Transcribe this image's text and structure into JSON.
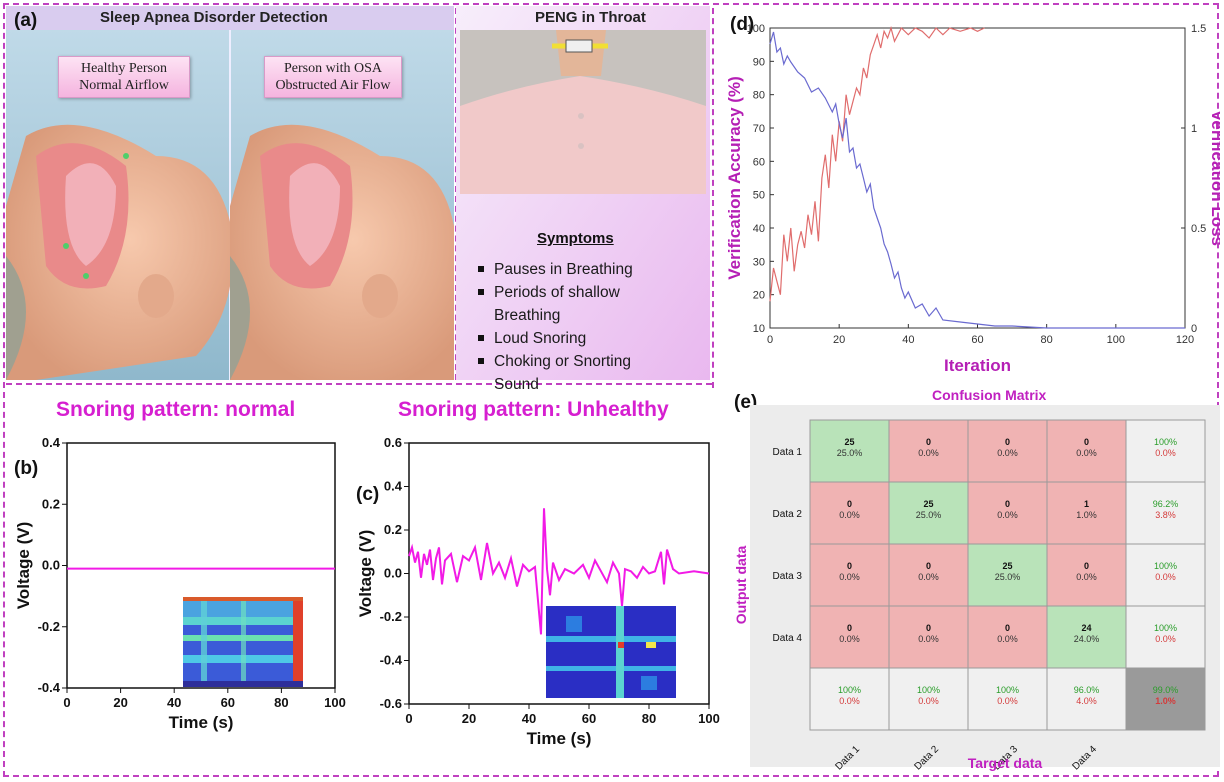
{
  "panel_a": {
    "label": "(a)",
    "title": "Sleep Apnea Disorder Detection",
    "bubble_left": [
      "Healthy Person",
      "Normal Airflow"
    ],
    "bubble_right": [
      "Person with OSA",
      "Obstructed Air Flow"
    ],
    "right_title": "PENG in Throat",
    "symptoms_title": "Symptoms",
    "symptoms": [
      "Pauses in Breathing",
      "Periods of shallow",
      "Breathing",
      "Loud Snoring",
      "Choking or Snorting",
      "Sound"
    ]
  },
  "panel_labels": {
    "b": "(b)",
    "c": "(c)",
    "d": "(d)",
    "e": "(e)"
  },
  "chart_data": [
    {
      "id": "b",
      "type": "line",
      "title": "Snoring pattern: normal",
      "xlabel": "Time (s)",
      "ylabel": "Voltage (V)",
      "xlim": [
        0,
        100
      ],
      "ylim": [
        -0.4,
        0.4
      ],
      "xticks": [
        "0",
        "20",
        "40",
        "60",
        "80",
        "100"
      ],
      "yticks": [
        "0.4",
        "0.2",
        "0.0",
        "-0.2",
        "-0.4"
      ],
      "series": [
        {
          "color": "#f21ae6",
          "x": [
            0,
            100
          ],
          "y": [
            -0.01,
            -0.01
          ]
        }
      ]
    },
    {
      "id": "c",
      "type": "line",
      "title": "Snoring pattern: Unhealthy",
      "xlabel": "Time (s)",
      "ylabel": "Voltage (V)",
      "xlim": [
        0,
        100
      ],
      "ylim": [
        -0.6,
        0.6
      ],
      "xticks": [
        "0",
        "20",
        "40",
        "60",
        "80",
        "100"
      ],
      "yticks": [
        "0.6",
        "0.4",
        "0.2",
        "0.0",
        "-0.2",
        "-0.4",
        "-0.6"
      ],
      "series": [
        {
          "color": "#f21ae6",
          "x": [
            0,
            1,
            2,
            3,
            4,
            5,
            6,
            7,
            8,
            9,
            10,
            11,
            12,
            14,
            16,
            18,
            20,
            22,
            24,
            26,
            28,
            30,
            32,
            34,
            36,
            38,
            40,
            42,
            44,
            45,
            46,
            47,
            48,
            50,
            52,
            55,
            58,
            60,
            62,
            64,
            66,
            68,
            70,
            71,
            72,
            74,
            76,
            78,
            80,
            82,
            84,
            85,
            86,
            88,
            90,
            95,
            100
          ],
          "y": [
            0.08,
            0.12,
            0.05,
            0.1,
            -0.02,
            0.09,
            0.04,
            0.11,
            -0.03,
            0.07,
            0.12,
            -0.05,
            0.06,
            0.09,
            -0.04,
            0.08,
            0.06,
            0.12,
            -0.03,
            0.14,
            0.0,
            0.05,
            -0.02,
            0.07,
            -0.06,
            0.04,
            0.01,
            0.03,
            -0.28,
            0.3,
            0.02,
            -0.1,
            0.05,
            -0.03,
            0.02,
            0.0,
            0.04,
            -0.02,
            0.06,
            0.01,
            -0.04,
            0.05,
            0.0,
            -0.15,
            0.02,
            0.01,
            -0.02,
            0.03,
            0.0,
            0.01,
            0.1,
            -0.05,
            0.11,
            0.02,
            0.0,
            0.01,
            0.0
          ]
        }
      ]
    },
    {
      "id": "d",
      "type": "line",
      "xlabel": "Iteration",
      "ylabel": "Verification  Accuracy (%)",
      "y2label": "Verification  Loss",
      "xlim": [
        0,
        120
      ],
      "ylim": [
        10,
        100
      ],
      "y2lim": [
        0,
        1.5
      ],
      "xticks": [
        "0",
        "20",
        "40",
        "60",
        "80",
        "100",
        "120"
      ],
      "yticks": [
        "100",
        "90",
        "80",
        "70",
        "60",
        "50",
        "40",
        "30",
        "20",
        "10"
      ],
      "y2ticks": [
        "1.5",
        "1",
        "0.5",
        "0"
      ],
      "series": [
        {
          "axis": "left",
          "color": "#e06d6d",
          "x": [
            0,
            1,
            2,
            3,
            4,
            5,
            6,
            7,
            8,
            9,
            10,
            11,
            12,
            13,
            14,
            15,
            16,
            17,
            18,
            19,
            20,
            21,
            22,
            23,
            24,
            25,
            26,
            27,
            28,
            29,
            30,
            31,
            32,
            33,
            34,
            35,
            36,
            38,
            40,
            42,
            44,
            46,
            48,
            50,
            52,
            55,
            58,
            60,
            62
          ],
          "y": [
            18,
            28,
            24,
            20,
            38,
            30,
            40,
            27,
            35,
            39,
            34,
            44,
            38,
            48,
            36,
            55,
            62,
            52,
            68,
            60,
            72,
            66,
            80,
            74,
            78,
            82,
            80,
            88,
            85,
            92,
            95,
            98,
            94,
            99,
            97,
            100,
            96,
            100,
            98,
            100,
            99,
            97,
            100,
            98,
            100,
            99,
            100,
            99,
            100
          ]
        },
        {
          "axis": "right",
          "color": "#6a6ad0",
          "x": [
            0,
            1,
            2,
            3,
            4,
            5,
            6,
            8,
            10,
            12,
            14,
            16,
            18,
            19,
            20,
            21,
            22,
            23,
            24,
            25,
            26,
            27,
            28,
            29,
            30,
            31,
            32,
            33,
            34,
            35,
            36,
            37,
            38,
            39,
            40,
            42,
            44,
            46,
            48,
            50,
            55,
            60,
            65,
            70,
            80,
            90,
            100,
            110,
            120
          ],
          "y": [
            1.42,
            1.48,
            1.38,
            1.4,
            1.32,
            1.36,
            1.33,
            1.28,
            1.25,
            1.18,
            1.2,
            1.15,
            1.08,
            1.12,
            1.02,
            0.95,
            1.05,
            0.88,
            0.9,
            0.8,
            0.82,
            0.75,
            0.68,
            0.72,
            0.6,
            0.55,
            0.5,
            0.42,
            0.38,
            0.32,
            0.25,
            0.28,
            0.2,
            0.15,
            0.18,
            0.1,
            0.12,
            0.06,
            0.1,
            0.04,
            0.03,
            0.02,
            0.01,
            0.01,
            0.0,
            0.0,
            0.0,
            0.0,
            0.0
          ]
        }
      ]
    },
    {
      "id": "e",
      "type": "heatmap",
      "title": "Confusion Matrix",
      "xlabel": "Target data",
      "ylabel": "Output data",
      "rows": [
        "Data 1",
        "Data 2",
        "Data 3",
        "Data 4"
      ],
      "cols": [
        "Data 1",
        "Data 2",
        "Data 3",
        "Data 4"
      ],
      "counts": [
        [
          25,
          0,
          0,
          0
        ],
        [
          0,
          25,
          0,
          1
        ],
        [
          0,
          0,
          25,
          0
        ],
        [
          0,
          0,
          0,
          24
        ]
      ],
      "percents": [
        [
          "25.0%",
          "0.0%",
          "0.0%",
          "0.0%"
        ],
        [
          "0.0%",
          "25.0%",
          "0.0%",
          "1.0%"
        ],
        [
          "0.0%",
          "0.0%",
          "25.0%",
          "0.0%"
        ],
        [
          "0.0%",
          "0.0%",
          "0.0%",
          "24.0%"
        ]
      ],
      "row_summary": [
        [
          "100%",
          "0.0%"
        ],
        [
          "96.2%",
          "3.8%"
        ],
        [
          "100%",
          "0.0%"
        ],
        [
          "100%",
          "0.0%"
        ]
      ],
      "col_summary": [
        [
          "100%",
          "0.0%"
        ],
        [
          "100%",
          "0.0%"
        ],
        [
          "100%",
          "0.0%"
        ],
        [
          "96.0%",
          "4.0%"
        ]
      ],
      "overall": [
        "99.0%",
        "1.0%"
      ],
      "colors": {
        "diag": "#b9e3b9",
        "off": "#f0b3b3",
        "summary": "#f0f0f0",
        "overall": "#9a9a9a",
        "good": "#2a9d2a",
        "bad": "#d43a3a"
      }
    }
  ]
}
